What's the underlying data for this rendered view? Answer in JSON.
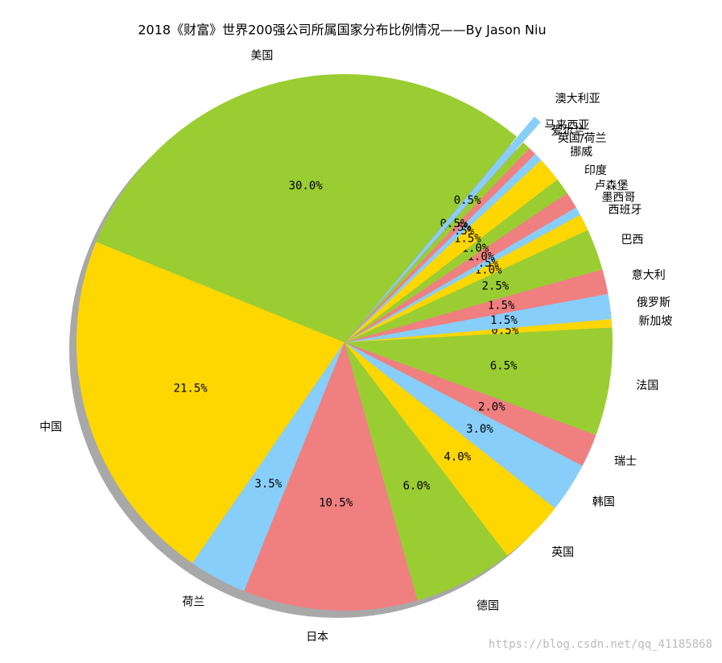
{
  "chart_data": {
    "type": "pie",
    "title": "2018《财富》世界200强公司所属国家分布比例情况——By Jason Niu",
    "categories": [
      "美国",
      "中国",
      "荷兰",
      "日本",
      "德国",
      "英国",
      "韩国",
      "瑞士",
      "法国",
      "新加坡",
      "俄罗斯",
      "意大利",
      "巴西",
      "西班牙",
      "墨西哥",
      "卢森堡",
      "印度",
      "挪威",
      "英国/荷兰",
      "爱尔兰",
      "马来西亚",
      "澳大利亚"
    ],
    "values": [
      30.0,
      21.5,
      3.5,
      10.5,
      6.0,
      4.0,
      3.0,
      2.0,
      6.5,
      0.5,
      1.5,
      1.5,
      2.5,
      1.0,
      0.5,
      1.0,
      1.0,
      1.5,
      0.5,
      0.5,
      0.5,
      0.5
    ],
    "value_labels": [
      "30.0%",
      "21.5%",
      "3.5%",
      "10.5%",
      "6.0%",
      "4.0%",
      "3.0%",
      "2.0%",
      "6.5%",
      "0.5%",
      "1.5%",
      "1.5%",
      "2.5%",
      "1.0%",
      "0.5%",
      "1.0%",
      "1.0%",
      "1.5%",
      "0.5%",
      "0.5%",
      "0.5%",
      "0.5%"
    ],
    "colors": [
      "#9acd32",
      "#ffd700",
      "#87cefa",
      "#f08080",
      "#9acd32",
      "#ffd700",
      "#87cefa",
      "#f08080",
      "#9acd32",
      "#ffd700",
      "#87cefa",
      "#f08080",
      "#9acd32",
      "#ffd700",
      "#87cefa",
      "#f08080",
      "#9acd32",
      "#ffd700",
      "#87cefa",
      "#f08080",
      "#9acd32",
      "#87cefa"
    ],
    "explode": [
      0,
      0,
      0,
      0,
      0,
      0,
      0,
      0,
      0,
      0,
      0,
      0,
      0,
      0,
      0,
      0,
      0,
      0,
      0,
      0,
      0,
      0.1
    ],
    "startangle": 50,
    "shadow": true,
    "watermark": "https://blog.csdn.net/qq_41185868"
  }
}
